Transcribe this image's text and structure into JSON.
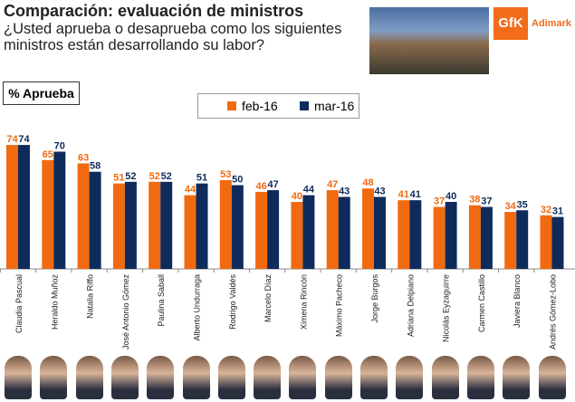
{
  "header": {
    "title": "Comparación: evaluación de ministros",
    "question": "¿Usted aprueba o desaprueba como los siguientes ministros están desarrollando su labor?",
    "logo": "GfK Adimark"
  },
  "chart_data": {
    "type": "bar",
    "ylabel": "% Aprueba",
    "ylim": [
      0,
      80
    ],
    "grid": false,
    "legend_position": "top",
    "categories": [
      "Claudia Pascual",
      "Heraldo Muñoz",
      "Natalia Riffo",
      "José Antonio Gómez",
      "Paulina Saball",
      "Alberto Undurraga",
      "Rodrigo Valdés",
      "Marcelo Díaz",
      "Ximena Rincón",
      "Máximo Pacheco",
      "Jorge Burgos",
      "Adriana Delpiano",
      "Nicolás Eyzaguirre",
      "Carmen Castillo",
      "Javiera Blanco",
      "Andrés Gómez-Lobo"
    ],
    "series": [
      {
        "name": "feb-16",
        "color": "#f26a0f",
        "values": [
          74,
          65,
          63,
          51,
          52,
          44,
          53,
          46,
          40,
          47,
          48,
          41,
          37,
          38,
          34,
          32
        ]
      },
      {
        "name": "mar-16",
        "color": "#0f2b5b",
        "values": [
          74,
          70,
          58,
          52,
          52,
          51,
          50,
          47,
          44,
          43,
          43,
          41,
          40,
          37,
          35,
          31
        ]
      }
    ]
  }
}
